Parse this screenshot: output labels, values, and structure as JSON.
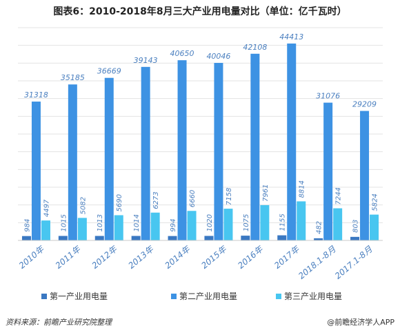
{
  "title": "图表6：2010-2018年8月三大产业用电量对比（单位：亿千瓦时）",
  "footer": {
    "source": "资料来源：前瞻产业研究院整理",
    "brand": "@前瞻经济学人APP"
  },
  "colors": {
    "series1": "#3a78c2",
    "series2": "#3d92e3",
    "series3": "#48c6f0",
    "grid": "#e3e3e3",
    "axis": "#c8c8c8",
    "label": "#4a7fbf"
  },
  "chart_data": {
    "type": "bar",
    "categories": [
      "2010年",
      "2011年",
      "2012年",
      "2013年",
      "2014年",
      "2015年",
      "2016年",
      "2017年",
      "2018.1-8月",
      "2017.1-8月"
    ],
    "series": [
      {
        "name": "第一产业用电量",
        "values": [
          984,
          1015,
          1013,
          1014,
          994,
          1020,
          1075,
          1155,
          482,
          803
        ]
      },
      {
        "name": "第二产业用电量",
        "values": [
          31318,
          35185,
          36669,
          39143,
          40650,
          40046,
          42108,
          44413,
          31076,
          29209
        ]
      },
      {
        "name": "第三产业用电量",
        "values": [
          4497,
          5082,
          5690,
          6273,
          6660,
          7158,
          7961,
          8814,
          7244,
          5824
        ]
      }
    ],
    "ylim": [
      0,
      48000
    ],
    "grid": true,
    "legend_position": "bottom"
  }
}
